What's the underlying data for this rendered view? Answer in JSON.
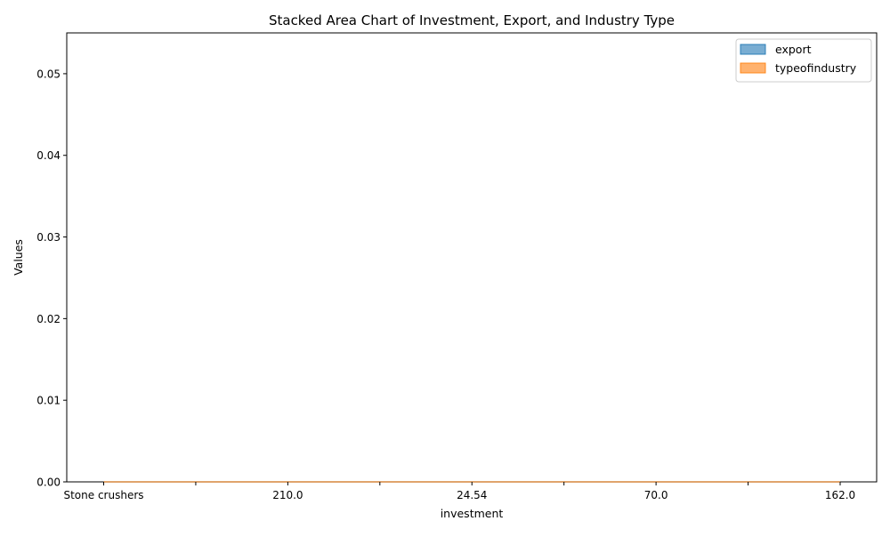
{
  "chart_data": {
    "type": "area",
    "stacked": true,
    "title": "Stacked Area Chart of Investment, Export, and Industry Type",
    "xlabel": "investment",
    "ylabel": "Values",
    "categories": [
      "Stone crushers",
      "",
      "210.0",
      "",
      "24.54",
      "",
      "70.0",
      "",
      "162.0"
    ],
    "x_tick_labels": [
      "Stone crushers",
      "210.0",
      "24.54",
      "70.0",
      "162.0"
    ],
    "x_labeled_indices": [
      0,
      2,
      4,
      6,
      8
    ],
    "series": [
      {
        "name": "export",
        "values": [
          0,
          0,
          0,
          0,
          0,
          0,
          0,
          0,
          0
        ],
        "color": "#1f77b4"
      },
      {
        "name": "typeofindustry",
        "values": [
          0,
          0,
          0,
          0,
          0,
          0,
          0,
          0,
          0
        ],
        "color": "#ff7f0e"
      }
    ],
    "ylim": [
      0,
      0.055
    ],
    "y_ticks": [
      0.0,
      0.01,
      0.02,
      0.03,
      0.04,
      0.05
    ],
    "y_tick_labels": [
      "0.00",
      "0.01",
      "0.02",
      "0.03",
      "0.04",
      "0.05"
    ],
    "fill_alpha": 0.6,
    "grid": false,
    "legend_position": "top-right"
  }
}
